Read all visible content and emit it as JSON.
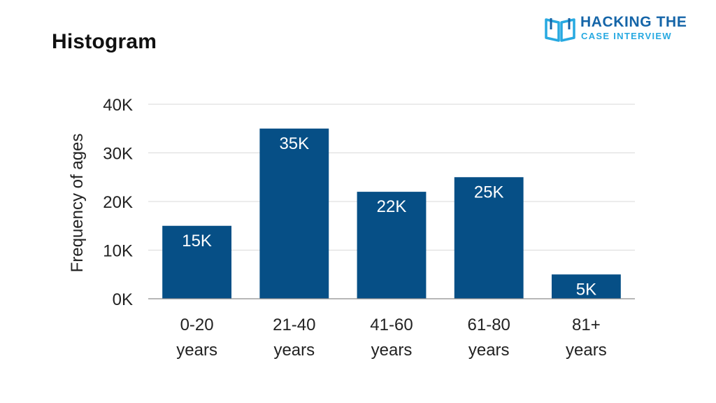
{
  "title": "Histogram",
  "logo": {
    "line1": "HACKING THE",
    "line2": "CASE INTERVIEW",
    "icon": "open-book-icon"
  },
  "colors": {
    "bar": "#064f86",
    "bar_label": "#ffffff",
    "grid": "#d9d9d9",
    "axis": "#8c8c8c",
    "text": "#222222"
  },
  "chart_data": {
    "type": "bar",
    "title": "Histogram",
    "xlabel": "",
    "ylabel": "Frequency of ages",
    "categories": [
      [
        "0-20",
        "years"
      ],
      [
        "21-40",
        "years"
      ],
      [
        "41-60",
        "years"
      ],
      [
        "61-80",
        "years"
      ],
      [
        "81+",
        "years"
      ]
    ],
    "values": [
      15000,
      35000,
      22000,
      25000,
      5000
    ],
    "data_labels": [
      "15K",
      "35K",
      "22K",
      "25K",
      "5K"
    ],
    "ylim": [
      0,
      40000
    ],
    "yticks": [
      0,
      10000,
      20000,
      30000,
      40000
    ],
    "ytick_labels": [
      "0K",
      "10K",
      "20K",
      "30K",
      "40K"
    ],
    "grid": true,
    "legend": "none"
  }
}
